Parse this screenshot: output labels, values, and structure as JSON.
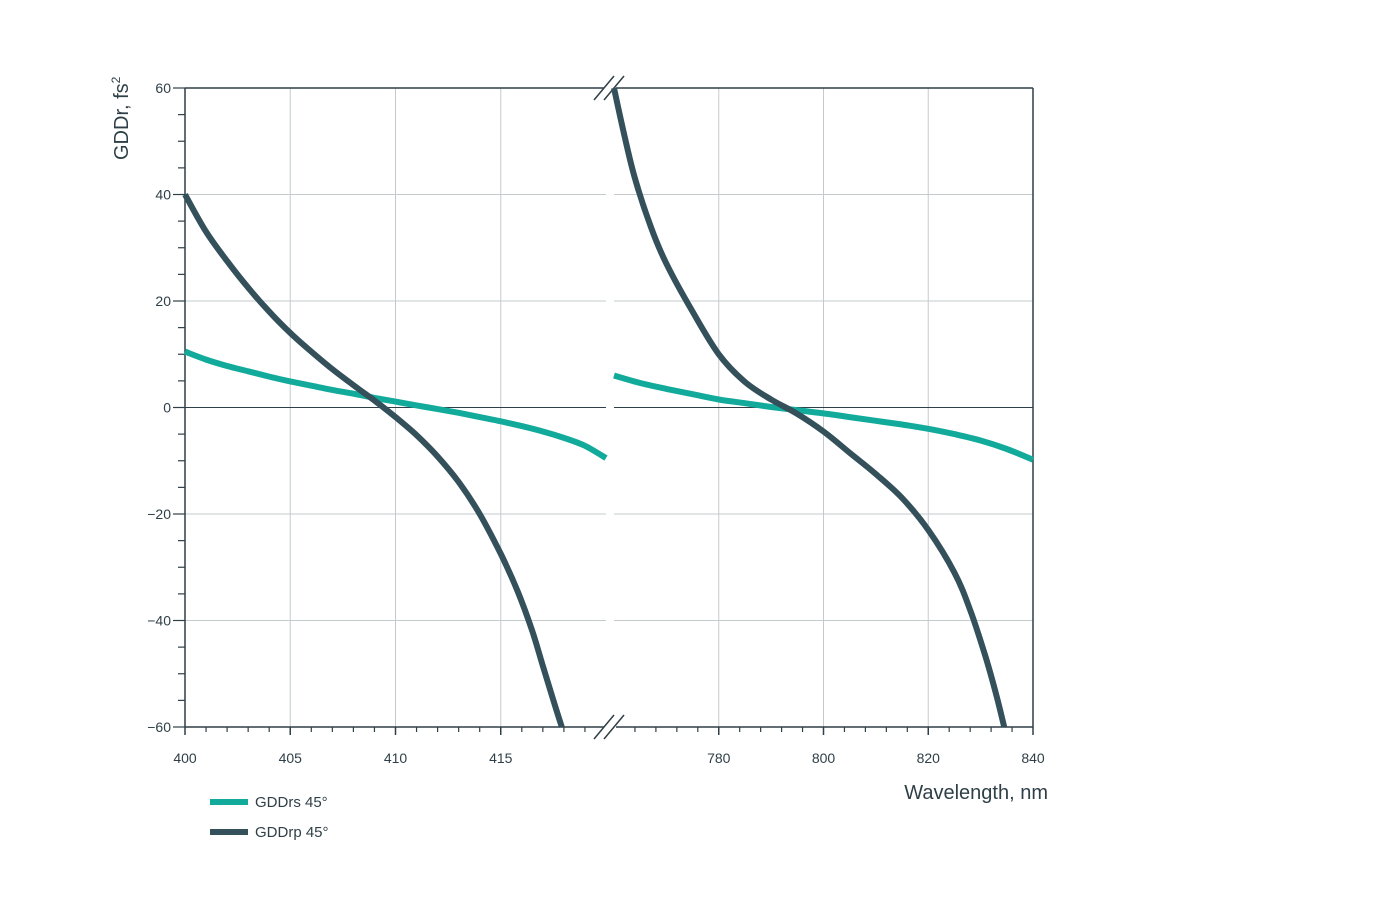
{
  "chart_data": {
    "type": "line",
    "ylabel": "GDDr, fs",
    "ylabel_superscript": "2",
    "xlabel": "Wavelength, nm",
    "ylim": [
      -60,
      60
    ],
    "y_ticks": [
      -60,
      -40,
      -20,
      0,
      20,
      40,
      60
    ],
    "y_tick_labels": [
      "−60",
      "−40",
      "−20",
      "0",
      "20",
      "40",
      "60"
    ],
    "grid": true,
    "broken_x_axis": true,
    "panels": [
      {
        "xlim": [
          400,
          420
        ],
        "x_ticks": [
          400,
          405,
          410,
          415
        ],
        "x_tick_labels": [
          "400",
          "405",
          "410",
          "415"
        ]
      },
      {
        "xlim": [
          760,
          840
        ],
        "x_ticks": [
          780,
          800,
          820,
          840
        ],
        "x_tick_labels": [
          "780",
          "800",
          "820",
          "840"
        ]
      }
    ],
    "series": [
      {
        "name": "GDDrs 45°",
        "color": "#12ab9b",
        "segments": [
          {
            "panel": 0,
            "x": [
              400,
              401,
              402,
              403,
              404,
              405,
              406,
              407,
              408,
              409,
              410,
              411,
              412,
              413,
              414,
              415,
              416,
              417,
              418,
              419,
              420
            ],
            "y": [
              10.5,
              9.0,
              7.8,
              6.8,
              5.8,
              4.9,
              4.1,
              3.3,
              2.6,
              1.8,
              1.1,
              0.4,
              -0.3,
              -1.0,
              -1.8,
              -2.6,
              -3.5,
              -4.5,
              -5.7,
              -7.2,
              -9.5
            ]
          },
          {
            "panel": 1,
            "x": [
              760,
              765,
              770,
              775,
              780,
              785,
              790,
              795,
              800,
              805,
              810,
              815,
              820,
              825,
              830,
              835,
              840
            ],
            "y": [
              6.0,
              4.6,
              3.5,
              2.5,
              1.5,
              0.8,
              0.1,
              -0.5,
              -1.1,
              -1.8,
              -2.5,
              -3.2,
              -4.0,
              -5.0,
              -6.2,
              -7.8,
              -9.8
            ]
          }
        ]
      },
      {
        "name": "GDDrp 45°",
        "color": "#33505b",
        "segments": [
          {
            "panel": 0,
            "x": [
              400,
              401,
              402,
              403,
              404,
              405,
              406,
              407,
              408,
              409,
              410,
              411,
              412,
              413,
              414,
              415,
              415.8,
              416.5,
              417,
              417.5,
              417.9
            ],
            "y": [
              40,
              33,
              27.5,
              22.5,
              18,
              14,
              10.5,
              7.2,
              4.2,
              1.3,
              -1.8,
              -5.2,
              -9.2,
              -14,
              -20,
              -27.5,
              -34.5,
              -42,
              -48.5,
              -55,
              -60
            ]
          },
          {
            "panel": 1,
            "x": [
              760,
              762,
              764,
              767,
              770,
              775,
              780,
              785,
              790,
              795,
              800,
              805,
              810,
              815,
              820,
              825,
              828,
              831,
              833,
              834.5
            ],
            "y": [
              60,
              51,
              43,
              34,
              27,
              18,
              10,
              4.8,
              1.5,
              -1.2,
              -4.5,
              -8.5,
              -12.5,
              -17,
              -23,
              -31,
              -38,
              -47,
              -54,
              -60
            ]
          }
        ]
      }
    ],
    "legend_position": "bottom-left"
  }
}
